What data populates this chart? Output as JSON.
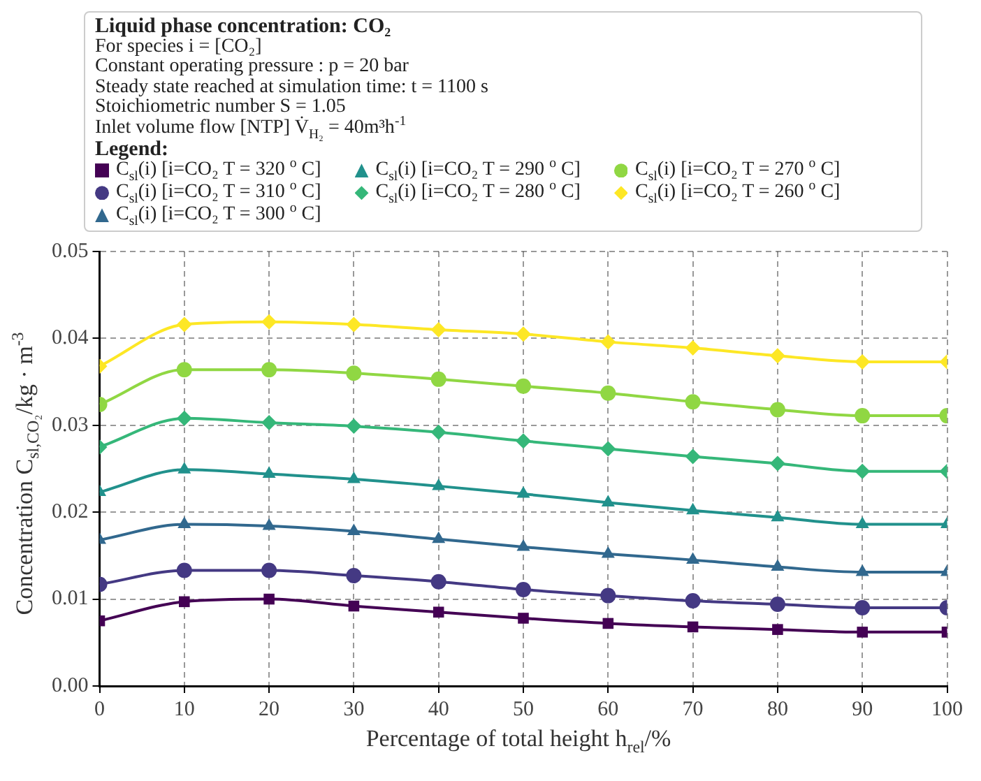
{
  "chart_data": {
    "type": "line",
    "title": "Liquid phase concentration: CO₂",
    "annotations": [
      "For species i = [CO₂]",
      "Constant operating pressure : p = 20 bar",
      "Steady state reached at simulation time: t = 1100 s",
      "Stoichiometric number S = 1.05",
      "Inlet volume flow [NTP] V̇$_{H₂}$ = 40m³h$^{-1}$"
    ],
    "legend_title": "Legend:",
    "legend": "top",
    "xlabel": "Percentage of total height h$_{rel}$/%",
    "ylabel": "Concentration C$_{sl,CO₂}$/kg · m$^{-3}$",
    "x": [
      0,
      10,
      20,
      30,
      40,
      50,
      60,
      70,
      80,
      90,
      100
    ],
    "xlim": [
      0,
      100
    ],
    "xticks": [
      0,
      10,
      20,
      30,
      40,
      50,
      60,
      70,
      80,
      90,
      100
    ],
    "ylim": [
      0,
      0.05
    ],
    "yticks": [
      {
        "value": 0,
        "label": "0.00"
      },
      {
        "value": 0.01,
        "label": "0.01"
      },
      {
        "value": 0.02,
        "label": "0.02"
      },
      {
        "value": 0.03,
        "label": "0.03"
      },
      {
        "value": 0.04,
        "label": "0.04"
      },
      {
        "value": 0.05,
        "label": "0.05"
      }
    ],
    "grid": true,
    "series": [
      {
        "name": "C$_{sl}$(i) [i=CO₂ T = 320 $^{o}$ C]",
        "color": "#440154",
        "marker": "square",
        "values": [
          0.0075,
          0.0097,
          0.01,
          0.0092,
          0.0085,
          0.0078,
          0.0072,
          0.0068,
          0.0065,
          0.0062,
          0.0062
        ]
      },
      {
        "name": "C$_{sl}$(i) [i=CO₂ T = 310 $^{o}$ C]",
        "color": "#443983",
        "marker": "circle",
        "values": [
          0.0117,
          0.0133,
          0.0133,
          0.0127,
          0.012,
          0.0111,
          0.0104,
          0.0098,
          0.0094,
          0.009,
          0.009
        ]
      },
      {
        "name": "C$_{sl}$(i) [i=CO₂ T = 300 $^{o}$ C]",
        "color": "#31688e",
        "marker": "triangle",
        "values": [
          0.0168,
          0.0186,
          0.0184,
          0.0178,
          0.0169,
          0.016,
          0.0152,
          0.0145,
          0.0137,
          0.0131,
          0.0131
        ]
      },
      {
        "name": "C$_{sl}$(i) [i=CO₂ T = 290 $^{o}$ C]",
        "color": "#21918c",
        "marker": "triangle",
        "values": [
          0.0223,
          0.0249,
          0.0244,
          0.0238,
          0.023,
          0.0221,
          0.0211,
          0.0202,
          0.0194,
          0.0186,
          0.0186
        ]
      },
      {
        "name": "C$_{sl}$(i) [i=CO₂ T = 280 $^{o}$ C]",
        "color": "#35b779",
        "marker": "diamond",
        "values": [
          0.0275,
          0.0308,
          0.0303,
          0.0299,
          0.0292,
          0.0282,
          0.0273,
          0.0264,
          0.0256,
          0.0247,
          0.0247
        ]
      },
      {
        "name": "C$_{sl}$(i) [i=CO₂ T = 270 $^{o}$ C]",
        "color": "#90d743",
        "marker": "circle",
        "values": [
          0.0324,
          0.0364,
          0.0364,
          0.036,
          0.0353,
          0.0345,
          0.0337,
          0.0327,
          0.0318,
          0.0311,
          0.0311
        ]
      },
      {
        "name": "C$_{sl}$(i) [i=CO₂ T = 260 $^{o}$ C]",
        "color": "#fde725",
        "marker": "diamond",
        "values": [
          0.0368,
          0.0416,
          0.0419,
          0.0416,
          0.041,
          0.0405,
          0.0396,
          0.0389,
          0.038,
          0.0373,
          0.0373
        ]
      }
    ]
  }
}
